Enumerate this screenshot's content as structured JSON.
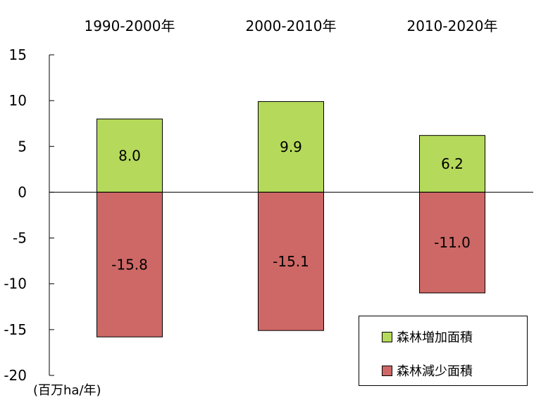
{
  "chart_data": {
    "type": "bar",
    "categories": [
      "1990-2000年",
      "2000-2010年",
      "2010-2020年"
    ],
    "series": [
      {
        "name": "森林増加面積",
        "values": [
          8.0,
          9.9,
          6.2
        ],
        "color": "#b5d95a"
      },
      {
        "name": "森林減少面積",
        "values": [
          -15.8,
          -15.1,
          -11.0
        ],
        "color": "#cd6866"
      }
    ],
    "data_labels": {
      "increase": [
        "8.0",
        "9.9",
        "6.2"
      ],
      "decrease": [
        "-15.8",
        "-15.1",
        "-11.0"
      ]
    },
    "ylim": [
      -20,
      15
    ],
    "y_ticks": [
      15,
      10,
      5,
      0,
      -5,
      -10,
      -15,
      -20
    ],
    "ylabel": "(百万ha/年)",
    "title": "",
    "xlabel": "",
    "grid": false,
    "category_labels_position": "top",
    "legend_position": "bottom-right"
  }
}
